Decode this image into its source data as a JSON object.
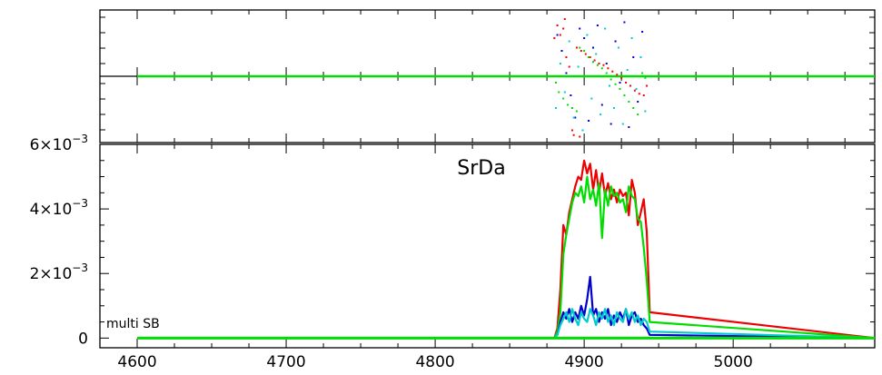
{
  "chart_data": [
    {
      "panel": "phase",
      "type": "scatter",
      "x_range": [
        4575,
        5095
      ],
      "zero_line": true,
      "series": [
        {
          "color": "#ff0000",
          "points": [
            [
              4882,
              1.6
            ],
            [
              4884,
              1.3
            ],
            [
              4886,
              1.5
            ],
            [
              4888,
              0.6
            ],
            [
              4890,
              0.3
            ],
            [
              4892,
              -1.7
            ],
            [
              4895,
              0.9
            ],
            [
              4898,
              0.8
            ],
            [
              4901,
              0.7
            ],
            [
              4904,
              0.6
            ],
            [
              4907,
              0.5
            ],
            [
              4910,
              0.4
            ],
            [
              4913,
              0.35
            ],
            [
              4916,
              0.25
            ],
            [
              4919,
              0.15
            ],
            [
              4922,
              0.05
            ],
            [
              4925,
              -0.05
            ],
            [
              4928,
              -0.2
            ],
            [
              4931,
              -0.3
            ],
            [
              4934,
              -0.45
            ],
            [
              4937,
              -0.55
            ],
            [
              4940,
              -0.6
            ],
            [
              4942,
              -0.3
            ],
            [
              4897,
              -1.9
            ],
            [
              4893,
              -1.85
            ],
            [
              4887,
              1.8
            ],
            [
              4880,
              1.2
            ]
          ]
        },
        {
          "color": "#00dd00",
          "points": [
            [
              4881,
              -0.2
            ],
            [
              4883,
              -0.5
            ],
            [
              4886,
              -0.7
            ],
            [
              4889,
              -0.9
            ],
            [
              4892,
              -1.0
            ],
            [
              4895,
              -1.1
            ],
            [
              4897,
              0.9
            ],
            [
              4900,
              0.8
            ],
            [
              4903,
              0.6
            ],
            [
              4906,
              0.45
            ],
            [
              4909,
              0.35
            ],
            [
              4912,
              0.25
            ],
            [
              4915,
              0.1
            ],
            [
              4918,
              -0.1
            ],
            [
              4921,
              -0.25
            ],
            [
              4924,
              -0.4
            ],
            [
              4927,
              -0.6
            ],
            [
              4930,
              -0.8
            ],
            [
              4933,
              -1.0
            ],
            [
              4936,
              -1.2
            ],
            [
              4939,
              0.1
            ],
            [
              4941,
              -0.05
            ]
          ]
        },
        {
          "color": "#0000dd",
          "points": [
            [
              4882,
              1.3
            ],
            [
              4885,
              0.8
            ],
            [
              4888,
              0.1
            ],
            [
              4891,
              -0.6
            ],
            [
              4894,
              -1.3
            ],
            [
              4897,
              1.5
            ],
            [
              4900,
              1.2
            ],
            [
              4903,
              -1.4
            ],
            [
              4906,
              0.9
            ],
            [
              4909,
              1.6
            ],
            [
              4912,
              -0.9
            ],
            [
              4915,
              0.4
            ],
            [
              4918,
              -1.5
            ],
            [
              4921,
              1.1
            ],
            [
              4924,
              -0.2
            ],
            [
              4927,
              1.7
            ],
            [
              4930,
              -1.6
            ],
            [
              4933,
              0.6
            ],
            [
              4936,
              -0.8
            ],
            [
              4939,
              1.4
            ]
          ]
        },
        {
          "color": "#00cccc",
          "points": [
            [
              4881,
              -1.0
            ],
            [
              4884,
              0.4
            ],
            [
              4887,
              -0.5
            ],
            [
              4890,
              1.1
            ],
            [
              4893,
              -1.3
            ],
            [
              4896,
              0.3
            ],
            [
              4899,
              -1.7
            ],
            [
              4902,
              1.3
            ],
            [
              4905,
              -0.7
            ],
            [
              4908,
              0.7
            ],
            [
              4911,
              -1.2
            ],
            [
              4914,
              1.5
            ],
            [
              4917,
              -0.3
            ],
            [
              4920,
              -1.0
            ],
            [
              4923,
              0.9
            ],
            [
              4926,
              -1.5
            ],
            [
              4929,
              0.2
            ],
            [
              4932,
              1.2
            ],
            [
              4935,
              -0.4
            ],
            [
              4938,
              0.6
            ],
            [
              4941,
              -1.1
            ]
          ]
        }
      ]
    },
    {
      "panel": "amplitude",
      "type": "line",
      "title": "SrDa",
      "annotation": "multi SB",
      "x_range": [
        4575,
        5095
      ],
      "y_range": [
        -0.0003,
        0.006
      ],
      "x_ticks": [
        {
          "value": 4600,
          "label": "4600"
        },
        {
          "value": 4700,
          "label": "4700"
        },
        {
          "value": 4800,
          "label": "4800"
        },
        {
          "value": 4900,
          "label": "4900"
        },
        {
          "value": 5000,
          "label": "5000"
        }
      ],
      "y_ticks": [
        {
          "value": 0,
          "label": "0",
          "exp": ""
        },
        {
          "value": 0.002,
          "label": "2×10",
          "exp": "−3"
        },
        {
          "value": 0.004,
          "label": "4×10",
          "exp": "−3"
        },
        {
          "value": 0.006,
          "label": "6×10",
          "exp": "−3"
        }
      ],
      "series": [
        {
          "color": "#ee0000",
          "x": [
            4600,
            4880,
            4882,
            4884,
            4886,
            4888,
            4890,
            4892,
            4894,
            4896,
            4898,
            4900,
            4902,
            4904,
            4906,
            4908,
            4910,
            4912,
            4914,
            4916,
            4918,
            4920,
            4922,
            4924,
            4926,
            4928,
            4930,
            4932,
            4934,
            4936,
            4938,
            4940,
            4942,
            4944,
            5095
          ],
          "y": [
            0,
            0,
            0.0003,
            0.0015,
            0.0035,
            0.0032,
            0.0039,
            0.0043,
            0.0047,
            0.005,
            0.0049,
            0.0055,
            0.0051,
            0.0054,
            0.0046,
            0.0052,
            0.0045,
            0.0051,
            0.0044,
            0.0048,
            0.0043,
            0.0046,
            0.0042,
            0.0046,
            0.0044,
            0.0045,
            0.0038,
            0.0049,
            0.0045,
            0.0035,
            0.0039,
            0.0043,
            0.0033,
            0.0008,
            0
          ]
        },
        {
          "color": "#00dd00",
          "x": [
            4600,
            4880,
            4882,
            4884,
            4886,
            4888,
            4890,
            4892,
            4894,
            4896,
            4898,
            4900,
            4902,
            4904,
            4906,
            4908,
            4910,
            4912,
            4914,
            4916,
            4918,
            4920,
            4922,
            4924,
            4926,
            4928,
            4930,
            4932,
            4934,
            4936,
            4938,
            4940,
            4942,
            4944,
            5095
          ],
          "y": [
            0,
            0,
            0.0002,
            0.0008,
            0.0026,
            0.0032,
            0.0037,
            0.0042,
            0.0045,
            0.0044,
            0.0047,
            0.0042,
            0.005,
            0.0043,
            0.0046,
            0.0041,
            0.0048,
            0.0031,
            0.0046,
            0.0041,
            0.0047,
            0.0044,
            0.0045,
            0.0042,
            0.0043,
            0.0039,
            0.0047,
            0.0044,
            0.0043,
            0.0037,
            0.0036,
            0.0028,
            0.0018,
            0.0005,
            0
          ]
        },
        {
          "color": "#0000cc",
          "x": [
            4600,
            4880,
            4882,
            4884,
            4886,
            4888,
            4890,
            4892,
            4894,
            4896,
            4898,
            4900,
            4902,
            4904,
            4906,
            4908,
            4910,
            4912,
            4914,
            4916,
            4918,
            4920,
            4922,
            4924,
            4926,
            4928,
            4930,
            4932,
            4934,
            4936,
            4938,
            4940,
            4942,
            4944,
            5095
          ],
          "y": [
            0,
            0,
            0.0001,
            0.0005,
            0.0008,
            0.0006,
            0.0009,
            0.0005,
            0.0008,
            0.0006,
            0.001,
            0.0007,
            0.0012,
            0.0019,
            0.0007,
            0.0009,
            0.0005,
            0.0008,
            0.0006,
            0.0009,
            0.0004,
            0.0007,
            0.0005,
            0.0008,
            0.0006,
            0.0009,
            0.0004,
            0.0007,
            0.0008,
            0.0005,
            0.0006,
            0.0004,
            0.0003,
            0.0001,
            0
          ]
        },
        {
          "color": "#00cccc",
          "x": [
            4600,
            4880,
            4882,
            4884,
            4886,
            4888,
            4890,
            4892,
            4894,
            4896,
            4898,
            4900,
            4902,
            4904,
            4906,
            4908,
            4910,
            4912,
            4914,
            4916,
            4918,
            4920,
            4922,
            4924,
            4926,
            4928,
            4930,
            4932,
            4934,
            4936,
            4938,
            4940,
            4942,
            4944,
            5095
          ],
          "y": [
            0,
            0,
            0.0001,
            0.0004,
            0.0006,
            0.0008,
            0.0005,
            0.0009,
            0.0006,
            0.0004,
            0.0008,
            0.0006,
            0.0005,
            0.0009,
            0.0007,
            0.0004,
            0.0008,
            0.0006,
            0.0009,
            0.0005,
            0.0007,
            0.0004,
            0.0008,
            0.0006,
            0.0005,
            0.0009,
            0.0006,
            0.0008,
            0.0005,
            0.0007,
            0.0004,
            0.0006,
            0.0005,
            0.0002,
            0
          ]
        }
      ]
    }
  ]
}
